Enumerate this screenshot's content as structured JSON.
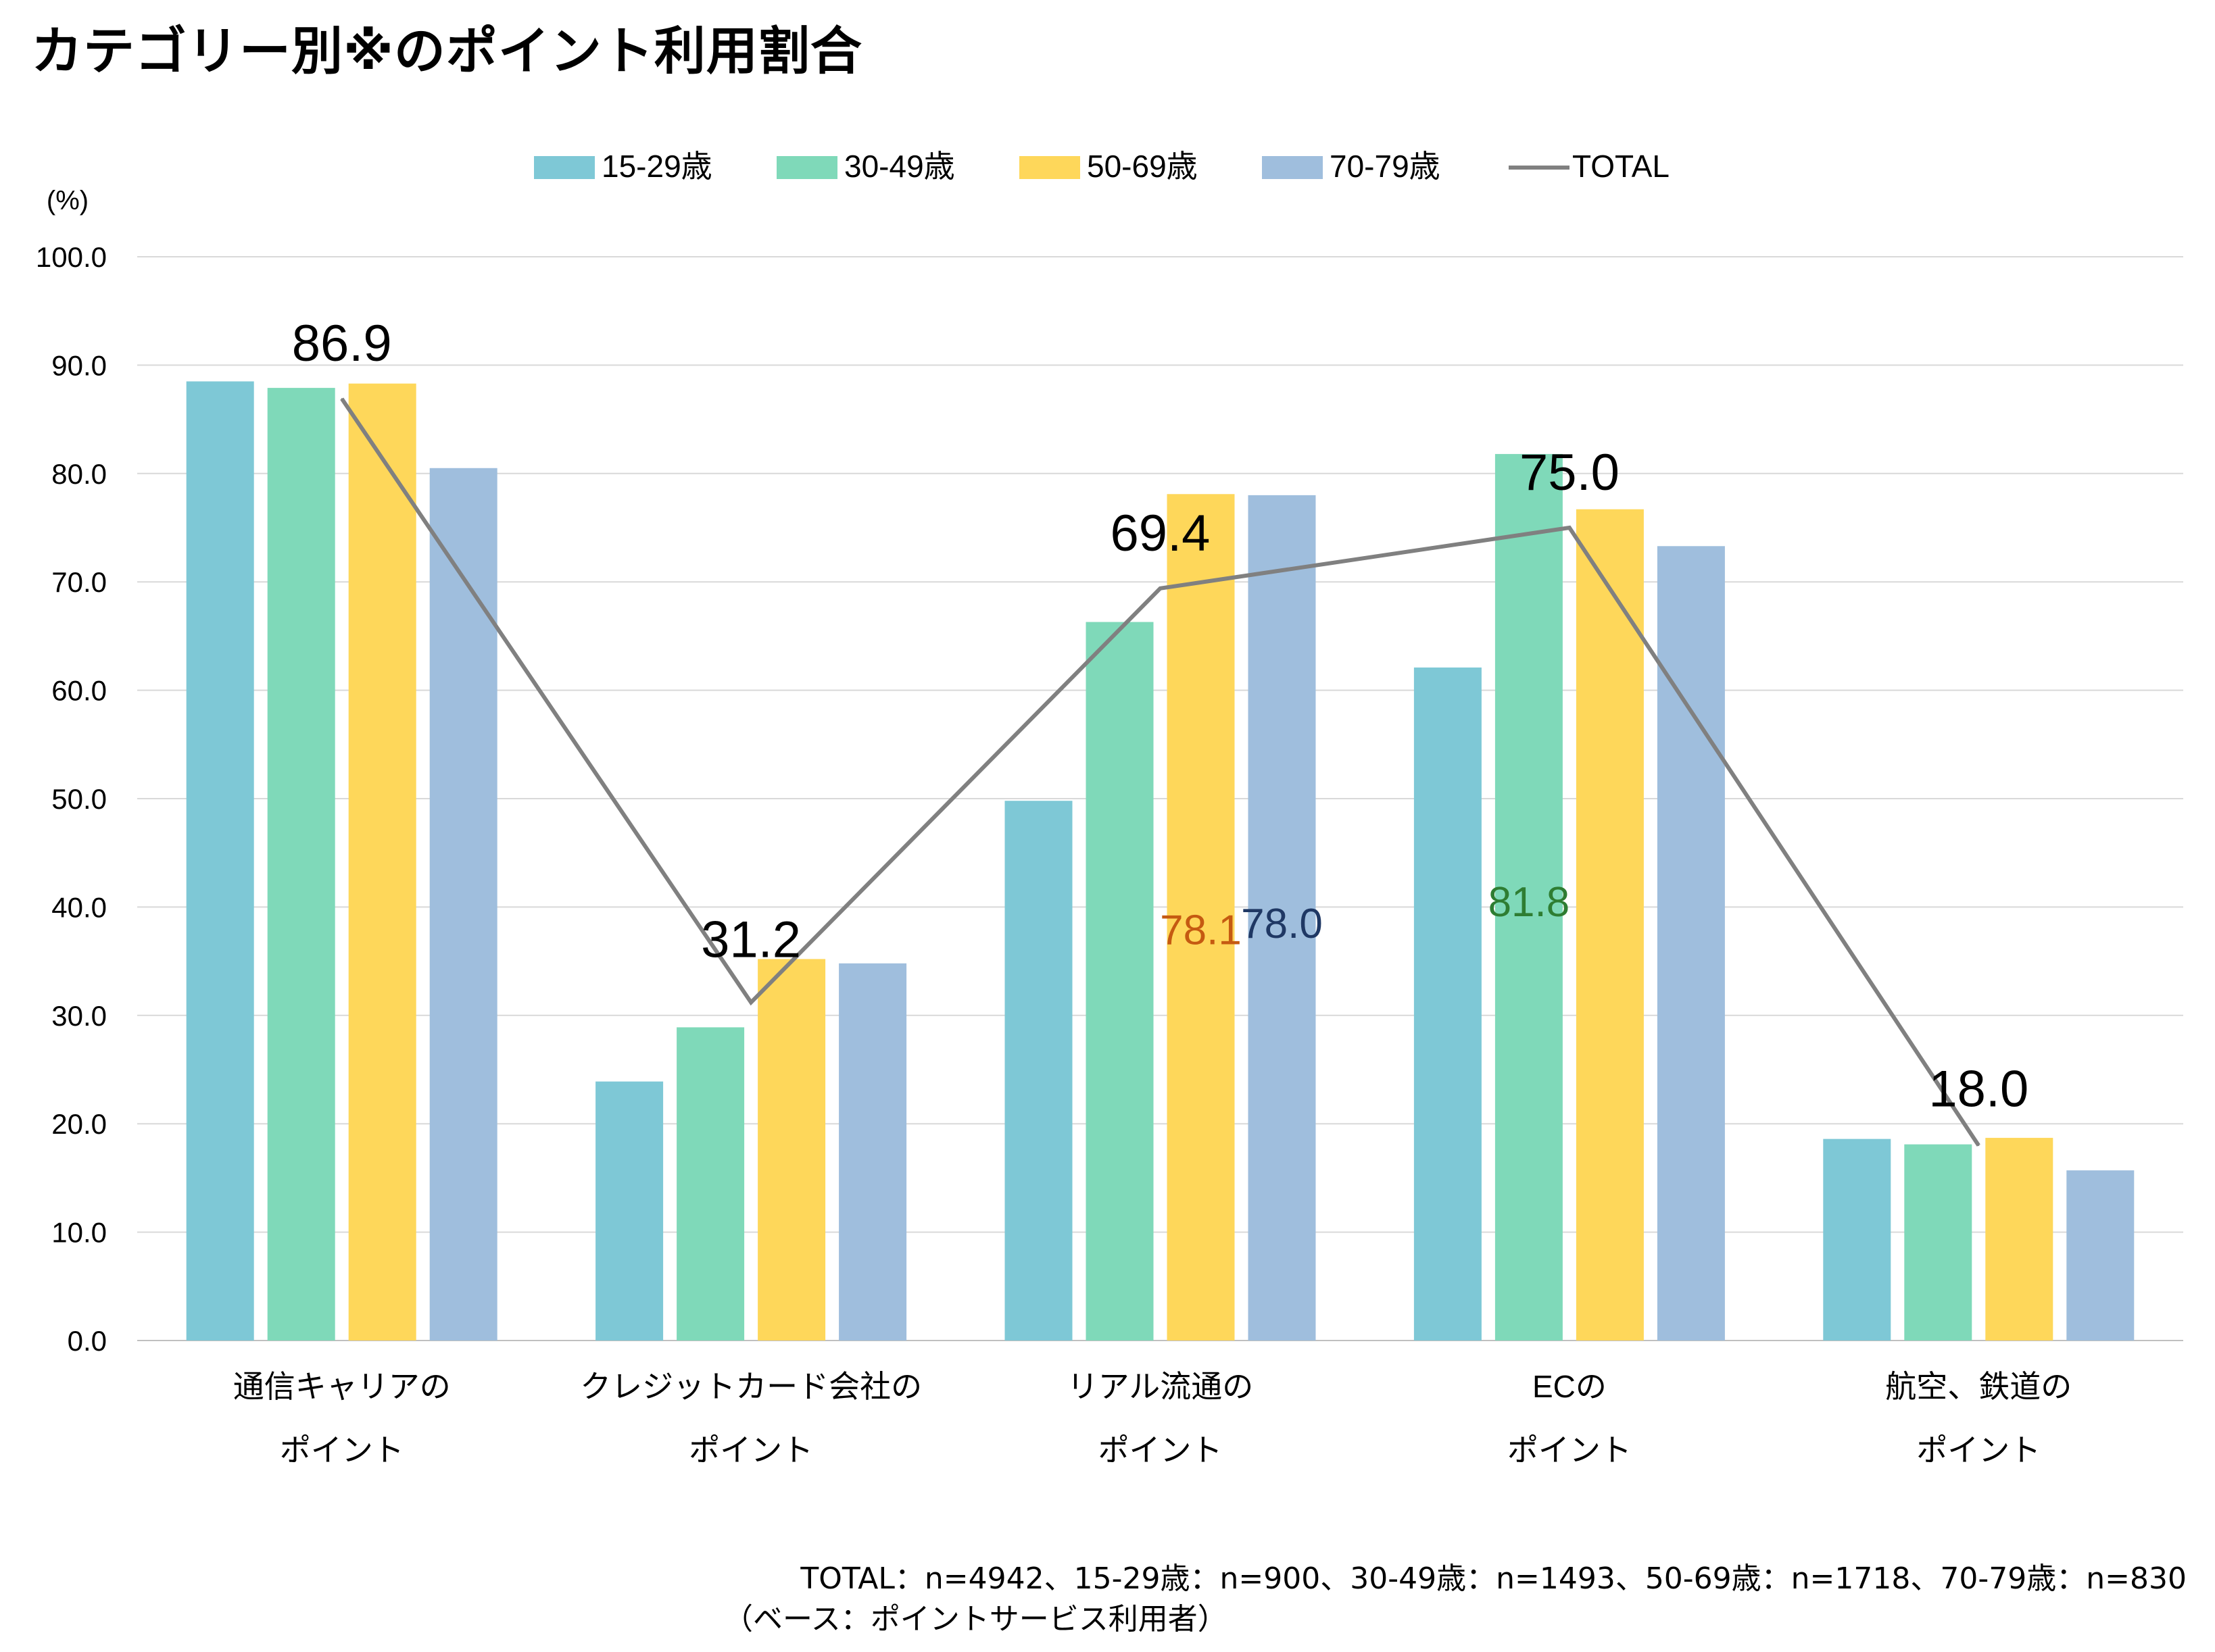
{
  "title": "カテゴリー別※のポイント利用割合",
  "footnotes": {
    "sample": "TOTAL：n=4942、15-29歳：n=900、30-49歳：n=1493、50-69歳：n=1718、70-79歳：n=830",
    "base": "（ベース：ポイントサービス利用者）"
  },
  "chart_data": {
    "type": "bar",
    "title": "カテゴリー別※のポイント利用割合",
    "ylabel": "(%)",
    "ylim": [
      0,
      100
    ],
    "yticks": [
      "0.0",
      "10.0",
      "20.0",
      "30.0",
      "40.0",
      "50.0",
      "60.0",
      "70.0",
      "80.0",
      "90.0",
      "100.0"
    ],
    "grid": true,
    "legend_position": "top",
    "categories": [
      [
        "通信キャリアの",
        "ポイント"
      ],
      [
        "クレジットカード会社の",
        "ポイント"
      ],
      [
        "リアル流通の",
        "ポイント"
      ],
      [
        "ECの",
        "ポイント"
      ],
      [
        "航空、鉄道の",
        "ポイント"
      ]
    ],
    "series": [
      {
        "name": "15-29歳",
        "color": "#7ec8d6",
        "values": [
          88.5,
          23.9,
          49.8,
          62.1,
          18.6
        ]
      },
      {
        "name": "30-49歳",
        "color": "#7fd9b9",
        "values": [
          87.9,
          28.9,
          66.3,
          81.8,
          18.1
        ]
      },
      {
        "name": "50-69歳",
        "color": "#fed75a",
        "values": [
          88.3,
          35.2,
          78.1,
          76.7,
          18.7
        ]
      },
      {
        "name": "70-79歳",
        "color": "#9fbedd",
        "values": [
          80.5,
          34.8,
          78.0,
          73.3,
          15.7
        ]
      }
    ],
    "total": {
      "name": "TOTAL",
      "color": "#808080",
      "values": [
        86.9,
        31.2,
        69.4,
        75.0,
        18.0
      ],
      "labels": [
        "86.9",
        "31.2",
        "69.4",
        "75.0",
        "18.0"
      ]
    },
    "annotations": [
      {
        "text": "78.1",
        "category": 2,
        "series": 2,
        "color": "#c55a11",
        "at_value": 37.8
      },
      {
        "text": "78.0",
        "category": 2,
        "series": 3,
        "color": "#1f3864",
        "at_value": 38.4
      },
      {
        "text": "81.8",
        "category": 3,
        "series": 1,
        "color": "#2e7d32",
        "at_value": 40.4
      }
    ]
  }
}
